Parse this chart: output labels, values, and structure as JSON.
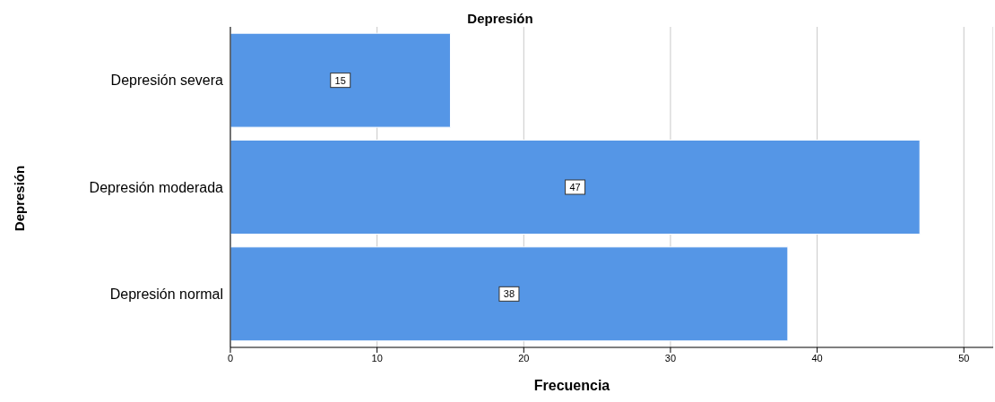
{
  "chart_data": {
    "type": "bar",
    "orientation": "horizontal",
    "title": "Depresión",
    "xlabel": "Frecuencia",
    "ylabel": "Depresión",
    "categories": [
      "Depresión severa",
      "Depresión moderada",
      "Depresión normal"
    ],
    "values": [
      15,
      47,
      38
    ],
    "color": "#5596e6",
    "xlim": [
      0,
      52
    ],
    "xticks": [
      0,
      10,
      20,
      30,
      40,
      50
    ],
    "grid": "x",
    "data_labels": true
  }
}
